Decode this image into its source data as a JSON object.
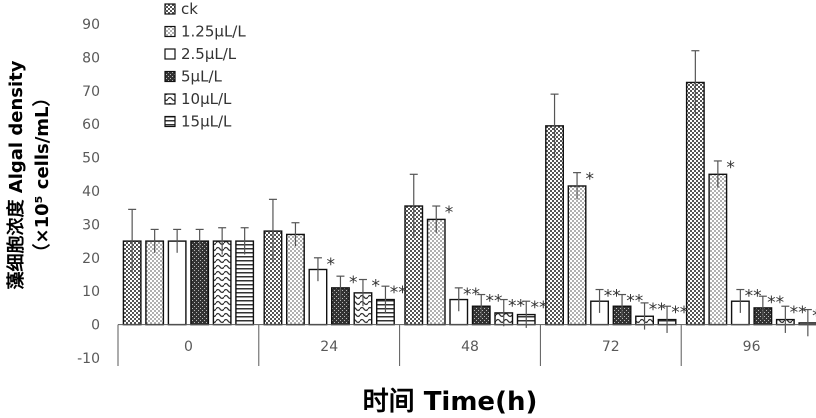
{
  "chart_data": {
    "type": "bar",
    "title": "",
    "xlabel": "时间 Time(h)",
    "ylabel_line1": "藻细胞浓度 Algal density",
    "ylabel_line2": "（×10⁵ cells/mL）",
    "ylim": [
      -10,
      90
    ],
    "yticks": [
      "-10",
      "0",
      "10",
      "20",
      "30",
      "40",
      "50",
      "60",
      "70",
      "80",
      "90"
    ],
    "categories": [
      "0",
      "24",
      "48",
      "72",
      "96"
    ],
    "series": [
      {
        "name": "ck",
        "values": [
          25,
          28,
          35.5,
          59.5,
          72.5
        ],
        "errors": [
          9.5,
          9.5,
          9.5,
          9.5,
          9.5
        ],
        "marks": [
          "",
          "",
          "",
          "",
          ""
        ]
      },
      {
        "name": "1.25μL/L",
        "values": [
          25,
          27,
          31.5,
          41.5,
          45
        ],
        "errors": [
          3.5,
          3.5,
          4,
          4,
          4
        ],
        "marks": [
          "",
          "",
          "*",
          "*",
          "*"
        ]
      },
      {
        "name": "2.5μL/L",
        "values": [
          25,
          16.5,
          7.5,
          7,
          7
        ],
        "errors": [
          3.5,
          3.5,
          3.5,
          3.5,
          3.5
        ],
        "marks": [
          "",
          "*",
          "**",
          "**",
          "**"
        ]
      },
      {
        "name": "5μL/L",
        "values": [
          25,
          11,
          5.5,
          5.5,
          5
        ],
        "errors": [
          3.5,
          3.5,
          3.5,
          3.5,
          3.5
        ],
        "marks": [
          "",
          "*",
          "**",
          "**",
          "**"
        ]
      },
      {
        "name": "10μL/L",
        "values": [
          25,
          9.5,
          3.5,
          2.5,
          1.5
        ],
        "errors": [
          4,
          4,
          4,
          4,
          4
        ],
        "marks": [
          "",
          "*",
          "**",
          "**",
          "**"
        ]
      },
      {
        "name": "15μL/L",
        "values": [
          25,
          7.5,
          3,
          1.5,
          0.5
        ],
        "errors": [
          4,
          4,
          4,
          4,
          4
        ],
        "marks": [
          "",
          "**",
          "**",
          "**",
          "**"
        ]
      }
    ],
    "patterns": [
      "checker",
      "dots",
      "blank",
      "dark",
      "wave",
      "hstripe"
    ],
    "grid": false,
    "legend_position": "top-left inside"
  }
}
